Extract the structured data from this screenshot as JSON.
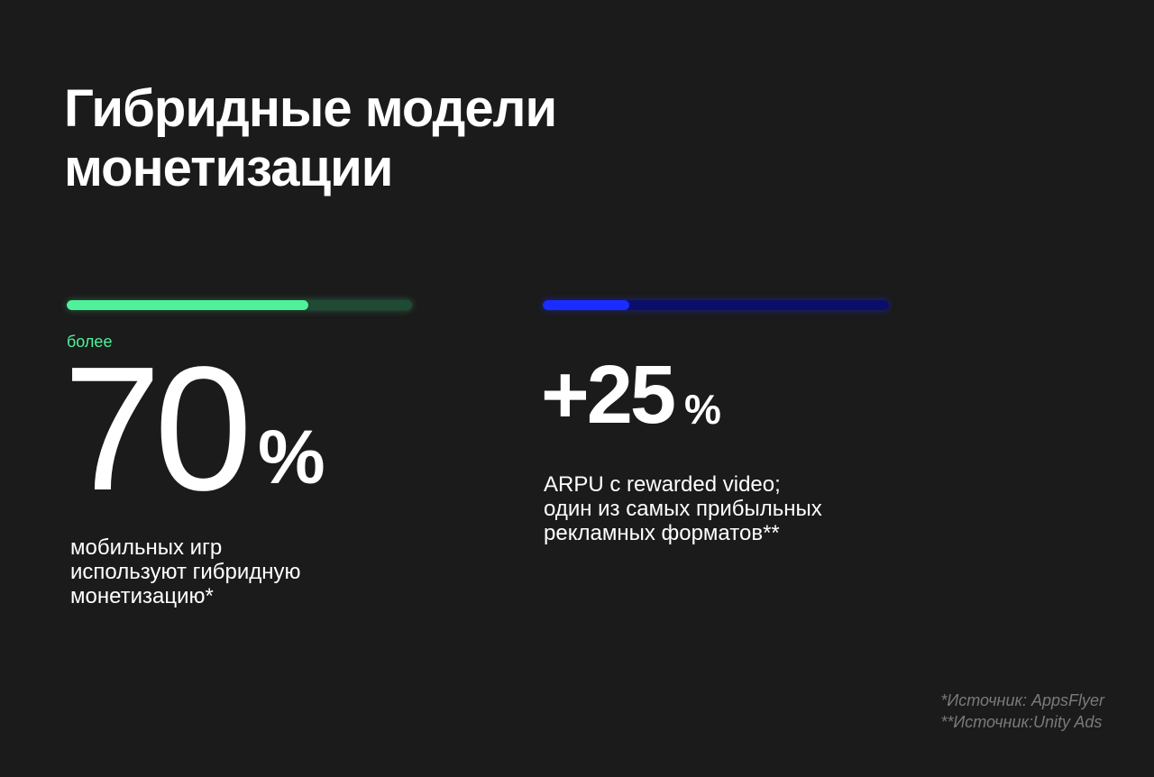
{
  "title": {
    "line1": "Гибридные модели",
    "line2": "монетизации"
  },
  "stat_left": {
    "prefix": "более",
    "value": "70",
    "unit": "%",
    "progress": 0.7,
    "accent_color": "#4ff19a",
    "track_color": "#1f4a33",
    "description": [
      "мобильных игр",
      "используют гибридную",
      "монетизацию*"
    ]
  },
  "stat_right": {
    "value": "+25",
    "unit": "%",
    "progress": 0.25,
    "accent_color": "#1a2cff",
    "track_color": "#0a0e6a",
    "description": [
      "ARPU с rewarded video;",
      "один из самых прибыльных",
      "рекламных форматов**"
    ]
  },
  "sources": [
    "*Источник: AppsFlyer",
    "**Источник:Unity Ads"
  ],
  "colors": {
    "background": "#1b1b1b",
    "text": "#ffffff",
    "muted": "#7a7a7a"
  }
}
